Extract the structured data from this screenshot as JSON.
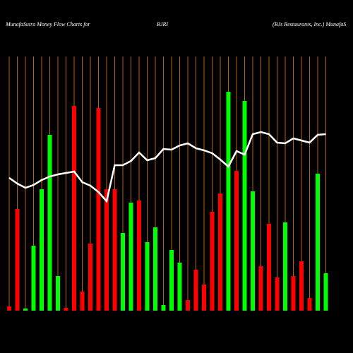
{
  "chart_data": {
    "type": "bar",
    "title": "MunafaSutra  Money Flow  Charts for",
    "symbol": "BJRI",
    "subtitle": "(BJs Restaurants,  Inc.) MunafaS",
    "ylim": [
      0,
      360
    ],
    "bar_values": [
      6,
      144,
      3,
      92,
      172,
      249,
      49,
      4,
      290,
      27,
      95,
      287,
      172,
      172,
      110,
      153,
      156,
      97,
      118,
      8,
      86,
      68,
      15,
      58,
      37,
      140,
      166,
      310,
      198,
      297,
      169,
      63,
      123,
      47,
      125,
      49,
      70,
      18,
      194,
      53
    ],
    "bar_colors": [
      "#ff0000",
      "#ff0000",
      "#00ff00",
      "#00ff00",
      "#00ff00",
      "#00ff00",
      "#00ff00",
      "#ff0000",
      "#ff0000",
      "#ff0000",
      "#ff0000",
      "#ff0000",
      "#ff0000",
      "#ff0000",
      "#00ff00",
      "#00ff00",
      "#ff0000",
      "#00ff00",
      "#00ff00",
      "#00ff00",
      "#00ff00",
      "#00ff00",
      "#ff0000",
      "#ff0000",
      "#ff0000",
      "#ff0000",
      "#ff0000",
      "#00ff00",
      "#ff0000",
      "#00ff00",
      "#00ff00",
      "#ff0000",
      "#ff0000",
      "#ff0000",
      "#00ff00",
      "#ff0000",
      "#ff0000",
      "#ff0000",
      "#00ff00",
      "#00ff00"
    ],
    "line_values": [
      188,
      180,
      174,
      178,
      185,
      190,
      193,
      195,
      197,
      182,
      177,
      168,
      155,
      206,
      206,
      212,
      224,
      213,
      216,
      229,
      228,
      234,
      237,
      230,
      227,
      223,
      214,
      204,
      226,
      221,
      250,
      253,
      250,
      238,
      237,
      244,
      241,
      238,
      249,
      250
    ],
    "line_color": "#ffffff",
    "grid_color": "#b8620a"
  }
}
